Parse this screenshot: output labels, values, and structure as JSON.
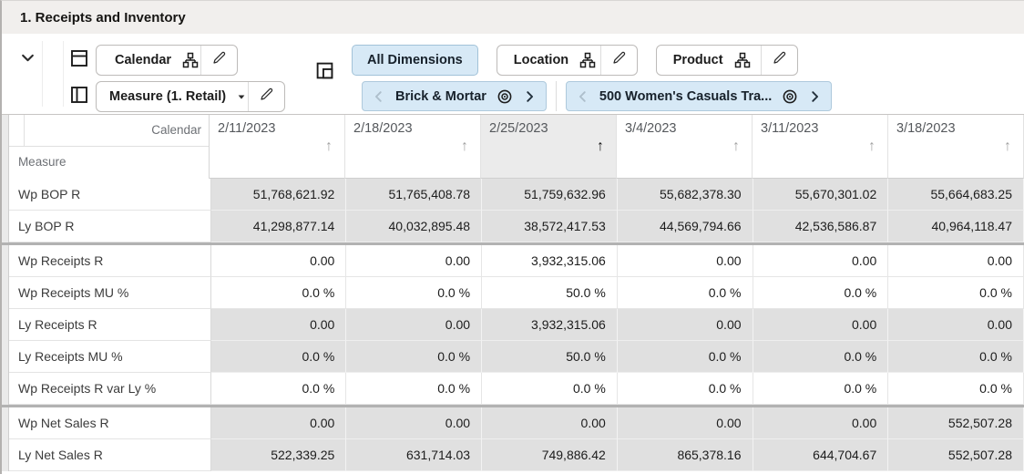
{
  "window": {
    "title": "1. Receipts and Inventory"
  },
  "toolbar": {
    "row_axis_button": {
      "label": "Calendar"
    },
    "col_axis_button": {
      "label": "Measure (1. Retail)"
    },
    "dimension_buttons": [
      {
        "label": "All Dimensions",
        "style": "chip",
        "selected": true
      },
      {
        "label": "Location",
        "style": "hierarchy",
        "selected": false
      },
      {
        "label": "Product",
        "style": "hierarchy",
        "selected": false
      }
    ],
    "page_edge_tiles": [
      {
        "label": "Brick & Mortar",
        "prev_enabled": false,
        "next_enabled": true
      },
      {
        "label": "500 Women's Casuals Tra...",
        "prev_enabled": false,
        "next_enabled": true
      }
    ]
  },
  "grid": {
    "corner": {
      "column_dimension": "Calendar",
      "row_dimension": "Measure"
    },
    "sort_arrow_glyph": "↑",
    "columns": [
      {
        "label": "2/11/2023",
        "selected": false
      },
      {
        "label": "2/18/2023",
        "selected": false
      },
      {
        "label": "2/25/2023",
        "selected": true
      },
      {
        "label": "3/4/2023",
        "selected": false
      },
      {
        "label": "3/11/2023",
        "selected": false
      },
      {
        "label": "3/18/2023",
        "selected": false
      }
    ],
    "rows": [
      {
        "label": "Wp BOP R",
        "readonly": true,
        "group_start": false,
        "values": [
          "51,768,621.92",
          "51,765,408.78",
          "51,759,632.96",
          "55,682,378.30",
          "55,670,301.02",
          "55,664,683.25"
        ]
      },
      {
        "label": "Ly BOP R",
        "readonly": true,
        "group_start": false,
        "values": [
          "41,298,877.14",
          "40,032,895.48",
          "38,572,417.53",
          "44,569,794.66",
          "42,536,586.87",
          "40,964,118.47"
        ]
      },
      {
        "label": "Wp Receipts R",
        "readonly": false,
        "group_start": true,
        "values": [
          "0.00",
          "0.00",
          "3,932,315.06",
          "0.00",
          "0.00",
          "0.00"
        ]
      },
      {
        "label": "Wp Receipts MU %",
        "readonly": false,
        "group_start": false,
        "values": [
          "0.0 %",
          "0.0 %",
          "50.0 %",
          "0.0 %",
          "0.0 %",
          "0.0 %"
        ]
      },
      {
        "label": "Ly Receipts R",
        "readonly": true,
        "group_start": false,
        "values": [
          "0.00",
          "0.00",
          "3,932,315.06",
          "0.00",
          "0.00",
          "0.00"
        ]
      },
      {
        "label": "Ly Receipts MU %",
        "readonly": true,
        "group_start": false,
        "values": [
          "0.0 %",
          "0.0 %",
          "50.0 %",
          "0.0 %",
          "0.0 %",
          "0.0 %"
        ]
      },
      {
        "label": "Wp Receipts R var Ly %",
        "readonly": false,
        "group_start": false,
        "values": [
          "0.0 %",
          "0.0 %",
          "0.0 %",
          "0.0 %",
          "0.0 %",
          "0.0 %"
        ]
      },
      {
        "label": "Wp Net Sales R",
        "readonly": true,
        "group_start": true,
        "values": [
          "0.00",
          "0.00",
          "0.00",
          "0.00",
          "0.00",
          "552,507.28"
        ]
      },
      {
        "label": "Ly Net Sales R",
        "readonly": true,
        "group_start": false,
        "values": [
          "522,339.25",
          "631,714.03",
          "749,886.42",
          "865,378.16",
          "644,704.67",
          "552,507.28"
        ]
      }
    ]
  },
  "colors": {
    "selection_blue_bg": "#d7e9f6",
    "selection_blue_border": "#a6c4da",
    "readonly_cell_bg": "#e0e0e0",
    "selected_header_bg": "#ebebeb",
    "titlebar_bg": "#f1efed",
    "group_separator": "#b2b2b2"
  }
}
